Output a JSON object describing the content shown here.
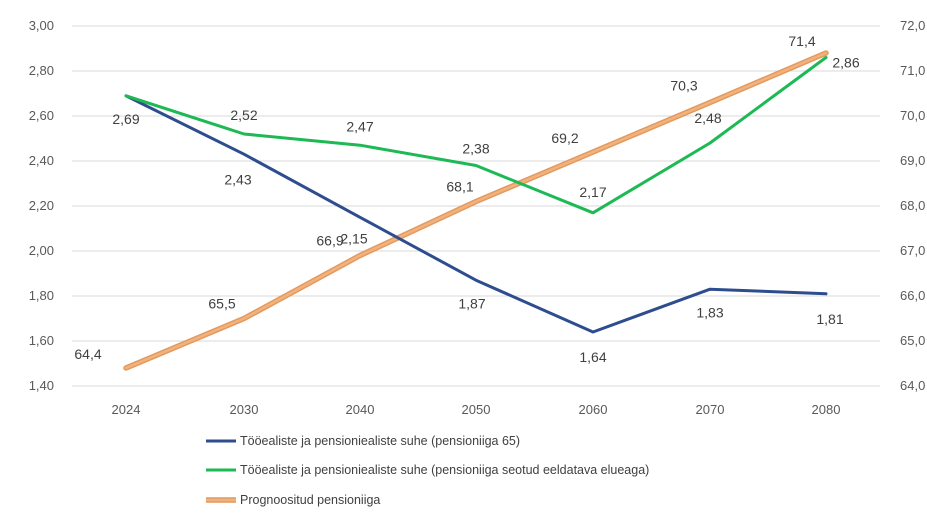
{
  "chart_data": {
    "type": "line",
    "categories": [
      "2024",
      "2030",
      "2040",
      "2050",
      "2060",
      "2070",
      "2080"
    ],
    "y_left": {
      "min": 1.4,
      "max": 3.0,
      "step": 0.2,
      "tick_labels": [
        "1,40",
        "1,60",
        "1,80",
        "2,00",
        "2,20",
        "2,40",
        "2,60",
        "2,80",
        "3,00"
      ]
    },
    "y_right": {
      "min": 64.0,
      "max": 72.0,
      "step": 1.0,
      "tick_labels": [
        "64,0",
        "65,0",
        "66,0",
        "67,0",
        "68,0",
        "69,0",
        "70,0",
        "71,0",
        "72,0"
      ]
    },
    "grid": true,
    "legend_position": "bottom",
    "series": [
      {
        "name": "Tööealiste ja pensioniealiste suhe (pensioniiga 65)",
        "axis": "left",
        "color": "#2e4d8f",
        "values": [
          2.69,
          2.43,
          2.15,
          1.87,
          1.64,
          1.83,
          1.81
        ],
        "labels": [
          "2,69",
          "2,43",
          "2,15",
          "1,87",
          "1,64",
          "1,83",
          "1,81"
        ]
      },
      {
        "name": "Tööealiste ja pensioniealiste suhe (pensioniiga seotud eeldatava elueaga)",
        "axis": "left",
        "color": "#1db954",
        "values": [
          2.69,
          2.52,
          2.47,
          2.38,
          2.17,
          2.48,
          2.86
        ],
        "labels": [
          "",
          "2,52",
          "2,47",
          "2,38",
          "2,17",
          "2,48",
          "2,86"
        ]
      },
      {
        "name": "Prognoositud pensioniiga",
        "axis": "right",
        "color": "#f2b27d",
        "values": [
          64.4,
          65.5,
          66.9,
          68.1,
          69.2,
          70.3,
          71.4
        ],
        "labels": [
          "64,4",
          "65,5",
          "66,9",
          "68,1",
          "69,2",
          "70,3",
          "71,4"
        ]
      }
    ]
  }
}
